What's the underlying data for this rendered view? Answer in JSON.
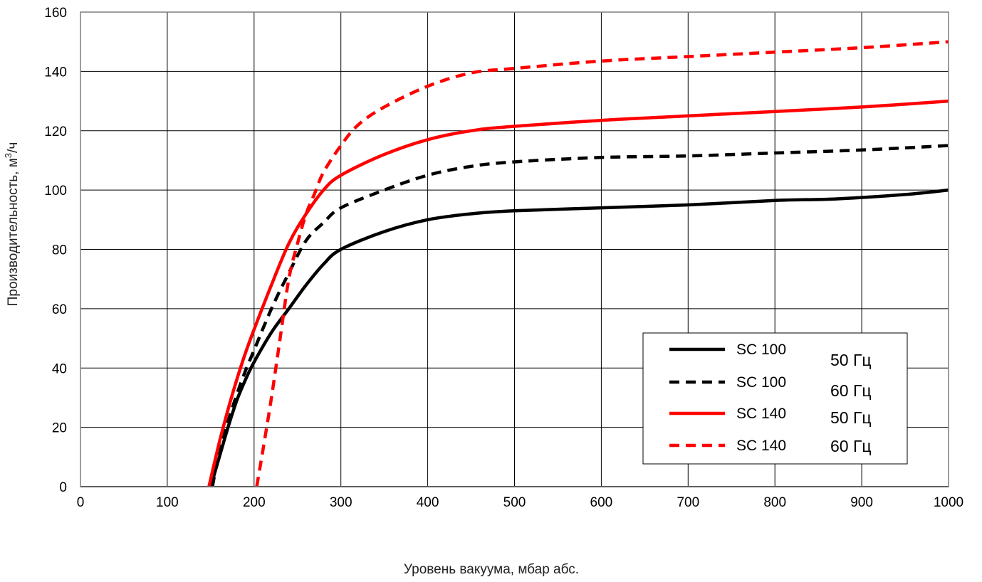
{
  "chart_data": {
    "type": "line",
    "title": "",
    "xlabel": "Уровень вакуума, мбар абс.",
    "ylabel_main": "Производительность, м",
    "ylabel_sup": "3",
    "ylabel_tail": "/ч",
    "xlim": [
      0,
      1000
    ],
    "ylim": [
      0,
      160
    ],
    "x_ticks": [
      0,
      100,
      200,
      300,
      400,
      500,
      600,
      700,
      800,
      900,
      1000
    ],
    "y_ticks": [
      0,
      20,
      40,
      60,
      80,
      100,
      120,
      140,
      160
    ],
    "grid": true,
    "legend_position": "bottom-right",
    "series": [
      {
        "name": "SC 100",
        "frequency": "50 Гц",
        "color": "#000000",
        "style": "solid",
        "points": [
          [
            150,
            0
          ],
          [
            160,
            10
          ],
          [
            170,
            20
          ],
          [
            180,
            29
          ],
          [
            190,
            36
          ],
          [
            200,
            42
          ],
          [
            220,
            52
          ],
          [
            240,
            60
          ],
          [
            260,
            68
          ],
          [
            280,
            75
          ],
          [
            300,
            80
          ],
          [
            350,
            86
          ],
          [
            400,
            90
          ],
          [
            450,
            92
          ],
          [
            500,
            93
          ],
          [
            600,
            94
          ],
          [
            700,
            95
          ],
          [
            800,
            96.5
          ],
          [
            870,
            97
          ],
          [
            950,
            98.5
          ],
          [
            1000,
            100
          ]
        ]
      },
      {
        "name": "SC 100",
        "frequency": "60 Гц",
        "color": "#000000",
        "style": "dashed",
        "points": [
          [
            152,
            0
          ],
          [
            160,
            12
          ],
          [
            170,
            22
          ],
          [
            180,
            31
          ],
          [
            190,
            39
          ],
          [
            200,
            46
          ],
          [
            220,
            60
          ],
          [
            240,
            72
          ],
          [
            260,
            83
          ],
          [
            280,
            89
          ],
          [
            300,
            94
          ],
          [
            350,
            100
          ],
          [
            400,
            105
          ],
          [
            450,
            108
          ],
          [
            500,
            109.5
          ],
          [
            600,
            111
          ],
          [
            700,
            111.5
          ],
          [
            800,
            112.5
          ],
          [
            900,
            113.5
          ],
          [
            1000,
            115
          ]
        ]
      },
      {
        "name": "SC 140",
        "frequency": "50 Гц",
        "color": "#ff0000",
        "style": "solid",
        "points": [
          [
            148,
            0
          ],
          [
            160,
            15
          ],
          [
            170,
            26
          ],
          [
            180,
            36
          ],
          [
            190,
            45
          ],
          [
            200,
            53
          ],
          [
            220,
            68
          ],
          [
            240,
            82
          ],
          [
            260,
            92
          ],
          [
            280,
            100
          ],
          [
            300,
            105
          ],
          [
            350,
            112
          ],
          [
            400,
            117
          ],
          [
            450,
            120
          ],
          [
            500,
            121.5
          ],
          [
            600,
            123.5
          ],
          [
            700,
            125
          ],
          [
            800,
            126.5
          ],
          [
            900,
            128
          ],
          [
            1000,
            130
          ]
        ]
      },
      {
        "name": "SC 140",
        "frequency": "60 Гц",
        "color": "#ff0000",
        "style": "dashed",
        "points": [
          [
            203,
            0
          ],
          [
            210,
            12
          ],
          [
            220,
            30
          ],
          [
            230,
            50
          ],
          [
            240,
            70
          ],
          [
            250,
            82
          ],
          [
            260,
            92
          ],
          [
            270,
            99
          ],
          [
            280,
            106
          ],
          [
            300,
            115
          ],
          [
            320,
            122
          ],
          [
            350,
            128
          ],
          [
            400,
            135
          ],
          [
            450,
            139.5
          ],
          [
            500,
            141
          ],
          [
            600,
            143.5
          ],
          [
            700,
            145
          ],
          [
            800,
            146.5
          ],
          [
            900,
            148
          ],
          [
            1000,
            150
          ]
        ]
      }
    ]
  }
}
